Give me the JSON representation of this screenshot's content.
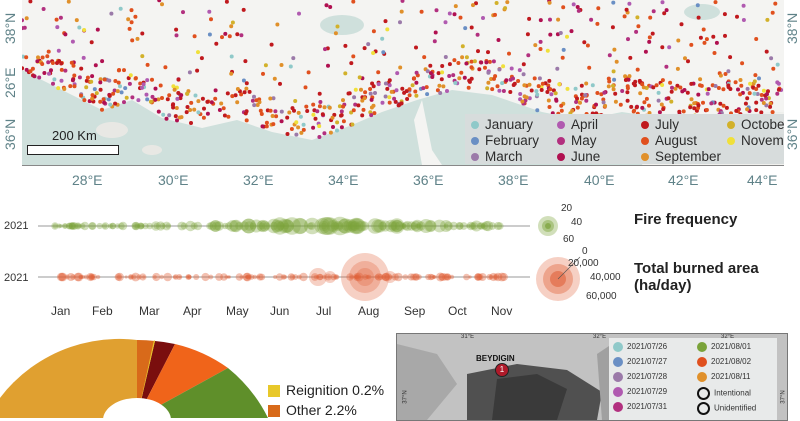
{
  "map": {
    "lon_ticks": [
      "28°E",
      "30°E",
      "32°E",
      "34°E",
      "36°E",
      "38°E",
      "40°E",
      "42°E",
      "44°E"
    ],
    "lat_left": [
      "38°N",
      "26°E",
      "36°N"
    ],
    "lat_right": [
      "38°N",
      "36°N"
    ],
    "scale_label": "200 Km",
    "legend": [
      {
        "label": "January",
        "color": "#8fc9c9"
      },
      {
        "label": "February",
        "color": "#6a8fc4"
      },
      {
        "label": "March",
        "color": "#9b7aa9"
      },
      {
        "label": "April",
        "color": "#b05ab0"
      },
      {
        "label": "May",
        "color": "#b2307f"
      },
      {
        "label": "June",
        "color": "#b01050"
      },
      {
        "label": "July",
        "color": "#c0191e"
      },
      {
        "label": "August",
        "color": "#e0501e"
      },
      {
        "label": "September",
        "color": "#e0902a"
      },
      {
        "label": "October",
        "color": "#d2b12a"
      },
      {
        "label": "November",
        "color": "#f0e03a"
      }
    ]
  },
  "timeline": {
    "year_label_1": "2021",
    "year_label_2": "2021",
    "months": [
      "Jan",
      "Feb",
      "Mar",
      "Apr",
      "May",
      "Jun",
      "Jul",
      "Aug",
      "Sep",
      "Oct",
      "Nov"
    ],
    "freq_title": "Fire frequency",
    "freq_sizes": [
      "20",
      "40",
      "60"
    ],
    "area_title_1": "Total burned area",
    "area_title_2": "(ha/day)",
    "area_sizes": [
      "0",
      "20,000",
      "40,000",
      "60,000"
    ],
    "freq_color": "#7aa33a",
    "area_color": "#e0623a"
  },
  "pie_legend": [
    {
      "label": "Reignition 0.2%",
      "color": "#e8c82a"
    },
    {
      "label": "Other 2.2%",
      "color": "#d86a1a"
    }
  ],
  "inset": {
    "lon_ticks": [
      "31°E",
      "32°E",
      "32°E"
    ],
    "place": "BEYDIGIN",
    "marker": "1",
    "lat_ticks": [
      "37°N",
      "37°N"
    ],
    "legend_left": [
      {
        "label": "2021/07/26",
        "color": "#8fc9c9"
      },
      {
        "label": "2021/07/27",
        "color": "#6a8fc4"
      },
      {
        "label": "2021/07/28",
        "color": "#9b7aa9"
      },
      {
        "label": "2021/07/29",
        "color": "#b05ab0"
      },
      {
        "label": "2021/07/31",
        "color": "#b2307f"
      }
    ],
    "legend_right": [
      {
        "label": "2021/08/01",
        "color": "#7aa33a"
      },
      {
        "label": "2021/08/02",
        "color": "#e0501e"
      },
      {
        "label": "2021/08/11",
        "color": "#e0902a"
      },
      {
        "label": "Intentional",
        "color": "ring"
      },
      {
        "label": "Unidentified",
        "color": "ring"
      }
    ]
  }
}
